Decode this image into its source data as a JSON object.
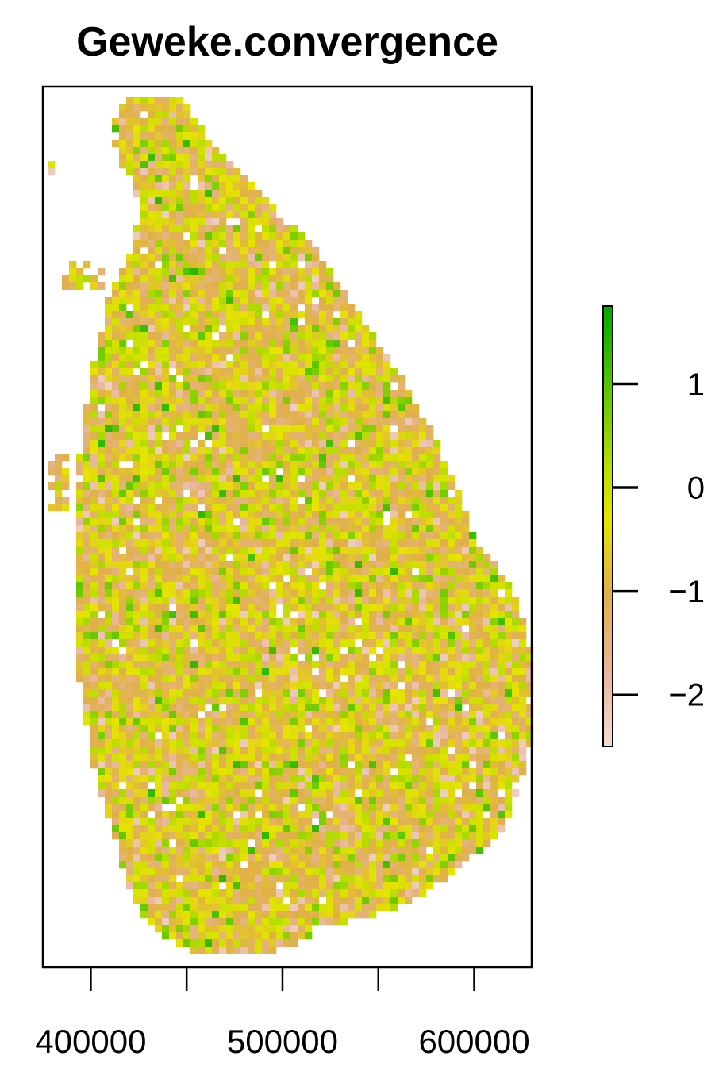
{
  "chart_data": {
    "type": "heatmap",
    "title": "Geweke.convergence",
    "xlabel": "",
    "ylabel": "",
    "x_ticks": [
      400000,
      500000,
      600000
    ],
    "x_tick_labels": [
      "400000",
      "500000",
      "600000"
    ],
    "xlim": [
      375000,
      630000
    ],
    "color_scale": {
      "range": [
        -2.5,
        1.75
      ],
      "ticks": [
        1,
        0,
        -1,
        -2
      ],
      "tick_labels": [
        "1",
        "0",
        "−1",
        "−2"
      ],
      "colors": [
        "#f2dcd8",
        "#e8b69a",
        "#e0b048",
        "#e6e400",
        "#b9dd00",
        "#55c400",
        "#00a600"
      ],
      "stops": [
        -2.5,
        -1.8,
        -1.0,
        -0.3,
        0.2,
        1.0,
        1.75
      ]
    },
    "value_distribution": {
      "-2": 0.06,
      "-1.3": 0.22,
      "-0.9": 0.26,
      "-0.3": 0.24,
      "0.1": 0.14,
      "0.6": 0.06,
      "1.1": 0.02
    }
  }
}
